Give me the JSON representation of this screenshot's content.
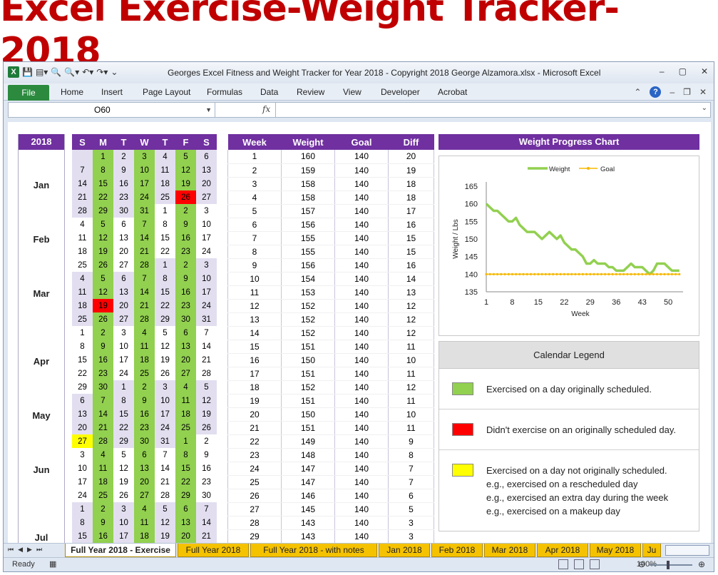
{
  "banner": "Excel Exercise-Weight Tracker-2018",
  "window": {
    "title": "Georges Excel Fitness and Weight Tracker for Year 2018 - Copyright 2018 George Alzamora.xlsx  -  Microsoft Excel"
  },
  "ribbon": {
    "file": "File",
    "tabs": [
      "Home",
      "Insert",
      "Page Layout",
      "Formulas",
      "Data",
      "Review",
      "View",
      "Developer",
      "Acrobat"
    ]
  },
  "formula_bar": {
    "name_box": "O60",
    "fx": "fx",
    "value": ""
  },
  "year_label": "2018",
  "months": [
    "Jan",
    "Feb",
    "Mar",
    "Apr",
    "May",
    "Jun",
    "Jul"
  ],
  "calendar": {
    "days": [
      "S",
      "M",
      "T",
      "W",
      "T",
      "F",
      "S"
    ],
    "rows": [
      [
        [
          "",
          "l"
        ],
        [
          "1",
          "g"
        ],
        [
          "2",
          "l"
        ],
        [
          "3",
          "g"
        ],
        [
          "4",
          "l"
        ],
        [
          "5",
          "g"
        ],
        [
          "6",
          "l"
        ]
      ],
      [
        [
          "7",
          "l"
        ],
        [
          "8",
          "g"
        ],
        [
          "9",
          "l"
        ],
        [
          "10",
          "g"
        ],
        [
          "11",
          "l"
        ],
        [
          "12",
          "g"
        ],
        [
          "13",
          "l"
        ]
      ],
      [
        [
          "14",
          "l"
        ],
        [
          "15",
          "g"
        ],
        [
          "16",
          "l"
        ],
        [
          "17",
          "g"
        ],
        [
          "18",
          "l"
        ],
        [
          "19",
          "g"
        ],
        [
          "20",
          "l"
        ]
      ],
      [
        [
          "21",
          "l"
        ],
        [
          "22",
          "g"
        ],
        [
          "23",
          "l"
        ],
        [
          "24",
          "g"
        ],
        [
          "25",
          "l"
        ],
        [
          "26",
          "r"
        ],
        [
          "27",
          "l"
        ]
      ],
      [
        [
          "28",
          "l"
        ],
        [
          "29",
          "g"
        ],
        [
          "30",
          "l"
        ],
        [
          "31",
          "g"
        ],
        [
          "1",
          "w"
        ],
        [
          "2",
          "g"
        ],
        [
          "3",
          "w"
        ]
      ],
      [
        [
          "4",
          "w"
        ],
        [
          "5",
          "g"
        ],
        [
          "6",
          "w"
        ],
        [
          "7",
          "g"
        ],
        [
          "8",
          "w"
        ],
        [
          "9",
          "g"
        ],
        [
          "10",
          "w"
        ]
      ],
      [
        [
          "11",
          "w"
        ],
        [
          "12",
          "g"
        ],
        [
          "13",
          "w"
        ],
        [
          "14",
          "g"
        ],
        [
          "15",
          "w"
        ],
        [
          "16",
          "g"
        ],
        [
          "17",
          "w"
        ]
      ],
      [
        [
          "18",
          "w"
        ],
        [
          "19",
          "g"
        ],
        [
          "20",
          "w"
        ],
        [
          "21",
          "g"
        ],
        [
          "22",
          "w"
        ],
        [
          "23",
          "g"
        ],
        [
          "24",
          "w"
        ]
      ],
      [
        [
          "25",
          "w"
        ],
        [
          "26",
          "g"
        ],
        [
          "27",
          "w"
        ],
        [
          "28",
          "g"
        ],
        [
          "1",
          "l"
        ],
        [
          "2",
          "g"
        ],
        [
          "3",
          "l"
        ]
      ],
      [
        [
          "4",
          "l"
        ],
        [
          "5",
          "g"
        ],
        [
          "6",
          "l"
        ],
        [
          "7",
          "g"
        ],
        [
          "8",
          "l"
        ],
        [
          "9",
          "g"
        ],
        [
          "10",
          "l"
        ]
      ],
      [
        [
          "11",
          "l"
        ],
        [
          "12",
          "g"
        ],
        [
          "13",
          "l"
        ],
        [
          "14",
          "g"
        ],
        [
          "15",
          "l"
        ],
        [
          "16",
          "g"
        ],
        [
          "17",
          "l"
        ]
      ],
      [
        [
          "18",
          "l"
        ],
        [
          "19",
          "r"
        ],
        [
          "20",
          "l"
        ],
        [
          "21",
          "g"
        ],
        [
          "22",
          "l"
        ],
        [
          "23",
          "g"
        ],
        [
          "24",
          "l"
        ]
      ],
      [
        [
          "25",
          "l"
        ],
        [
          "26",
          "g"
        ],
        [
          "27",
          "l"
        ],
        [
          "28",
          "g"
        ],
        [
          "29",
          "l"
        ],
        [
          "30",
          "g"
        ],
        [
          "31",
          "l"
        ]
      ],
      [
        [
          "1",
          "w"
        ],
        [
          "2",
          "g"
        ],
        [
          "3",
          "w"
        ],
        [
          "4",
          "g"
        ],
        [
          "5",
          "w"
        ],
        [
          "6",
          "g"
        ],
        [
          "7",
          "w"
        ]
      ],
      [
        [
          "8",
          "w"
        ],
        [
          "9",
          "g"
        ],
        [
          "10",
          "w"
        ],
        [
          "11",
          "g"
        ],
        [
          "12",
          "w"
        ],
        [
          "13",
          "g"
        ],
        [
          "14",
          "w"
        ]
      ],
      [
        [
          "15",
          "w"
        ],
        [
          "16",
          "g"
        ],
        [
          "17",
          "w"
        ],
        [
          "18",
          "g"
        ],
        [
          "19",
          "w"
        ],
        [
          "20",
          "g"
        ],
        [
          "21",
          "w"
        ]
      ],
      [
        [
          "22",
          "w"
        ],
        [
          "23",
          "g"
        ],
        [
          "24",
          "w"
        ],
        [
          "25",
          "g"
        ],
        [
          "26",
          "w"
        ],
        [
          "27",
          "g"
        ],
        [
          "28",
          "w"
        ]
      ],
      [
        [
          "29",
          "w"
        ],
        [
          "30",
          "g"
        ],
        [
          "1",
          "l"
        ],
        [
          "2",
          "g"
        ],
        [
          "3",
          "l"
        ],
        [
          "4",
          "g"
        ],
        [
          "5",
          "l"
        ]
      ],
      [
        [
          "6",
          "l"
        ],
        [
          "7",
          "g"
        ],
        [
          "8",
          "l"
        ],
        [
          "9",
          "g"
        ],
        [
          "10",
          "l"
        ],
        [
          "11",
          "g"
        ],
        [
          "12",
          "l"
        ]
      ],
      [
        [
          "13",
          "l"
        ],
        [
          "14",
          "g"
        ],
        [
          "15",
          "l"
        ],
        [
          "16",
          "g"
        ],
        [
          "17",
          "l"
        ],
        [
          "18",
          "g"
        ],
        [
          "19",
          "l"
        ]
      ],
      [
        [
          "20",
          "l"
        ],
        [
          "21",
          "g"
        ],
        [
          "22",
          "l"
        ],
        [
          "23",
          "g"
        ],
        [
          "24",
          "l"
        ],
        [
          "25",
          "g"
        ],
        [
          "26",
          "l"
        ]
      ],
      [
        [
          "27",
          "y"
        ],
        [
          "28",
          "g"
        ],
        [
          "29",
          "l"
        ],
        [
          "30",
          "g"
        ],
        [
          "31",
          "l"
        ],
        [
          "1",
          "g"
        ],
        [
          "2",
          "w"
        ]
      ],
      [
        [
          "3",
          "w"
        ],
        [
          "4",
          "g"
        ],
        [
          "5",
          "w"
        ],
        [
          "6",
          "g"
        ],
        [
          "7",
          "w"
        ],
        [
          "8",
          "g"
        ],
        [
          "9",
          "w"
        ]
      ],
      [
        [
          "10",
          "w"
        ],
        [
          "11",
          "g"
        ],
        [
          "12",
          "w"
        ],
        [
          "13",
          "g"
        ],
        [
          "14",
          "w"
        ],
        [
          "15",
          "g"
        ],
        [
          "16",
          "w"
        ]
      ],
      [
        [
          "17",
          "w"
        ],
        [
          "18",
          "g"
        ],
        [
          "19",
          "w"
        ],
        [
          "20",
          "g"
        ],
        [
          "21",
          "w"
        ],
        [
          "22",
          "g"
        ],
        [
          "23",
          "w"
        ]
      ],
      [
        [
          "24",
          "w"
        ],
        [
          "25",
          "g"
        ],
        [
          "26",
          "w"
        ],
        [
          "27",
          "g"
        ],
        [
          "28",
          "w"
        ],
        [
          "29",
          "g"
        ],
        [
          "30",
          "w"
        ]
      ],
      [
        [
          "1",
          "l"
        ],
        [
          "2",
          "g"
        ],
        [
          "3",
          "l"
        ],
        [
          "4",
          "g"
        ],
        [
          "5",
          "l"
        ],
        [
          "6",
          "g"
        ],
        [
          "7",
          "l"
        ]
      ],
      [
        [
          "8",
          "l"
        ],
        [
          "9",
          "g"
        ],
        [
          "10",
          "l"
        ],
        [
          "11",
          "g"
        ],
        [
          "12",
          "l"
        ],
        [
          "13",
          "g"
        ],
        [
          "14",
          "l"
        ]
      ],
      [
        [
          "15",
          "l"
        ],
        [
          "16",
          "g"
        ],
        [
          "17",
          "l"
        ],
        [
          "18",
          "g"
        ],
        [
          "19",
          "l"
        ],
        [
          "20",
          "g"
        ],
        [
          "21",
          "l"
        ]
      ]
    ]
  },
  "weight_table": {
    "headers": [
      "Week",
      "Weight",
      "Goal",
      "Diff"
    ],
    "rows": [
      [
        "1",
        "160",
        "140",
        "20"
      ],
      [
        "2",
        "159",
        "140",
        "19"
      ],
      [
        "3",
        "158",
        "140",
        "18"
      ],
      [
        "4",
        "158",
        "140",
        "18"
      ],
      [
        "5",
        "157",
        "140",
        "17"
      ],
      [
        "6",
        "156",
        "140",
        "16"
      ],
      [
        "7",
        "155",
        "140",
        "15"
      ],
      [
        "8",
        "155",
        "140",
        "15"
      ],
      [
        "9",
        "156",
        "140",
        "16"
      ],
      [
        "10",
        "154",
        "140",
        "14"
      ],
      [
        "11",
        "153",
        "140",
        "13"
      ],
      [
        "12",
        "152",
        "140",
        "12"
      ],
      [
        "13",
        "152",
        "140",
        "12"
      ],
      [
        "14",
        "152",
        "140",
        "12"
      ],
      [
        "15",
        "151",
        "140",
        "11"
      ],
      [
        "16",
        "150",
        "140",
        "10"
      ],
      [
        "17",
        "151",
        "140",
        "11"
      ],
      [
        "18",
        "152",
        "140",
        "12"
      ],
      [
        "19",
        "151",
        "140",
        "11"
      ],
      [
        "20",
        "150",
        "140",
        "10"
      ],
      [
        "21",
        "151",
        "140",
        "11"
      ],
      [
        "22",
        "149",
        "140",
        "9"
      ],
      [
        "23",
        "148",
        "140",
        "8"
      ],
      [
        "24",
        "147",
        "140",
        "7"
      ],
      [
        "25",
        "147",
        "140",
        "7"
      ],
      [
        "26",
        "146",
        "140",
        "6"
      ],
      [
        "27",
        "145",
        "140",
        "5"
      ],
      [
        "28",
        "143",
        "140",
        "3"
      ],
      [
        "29",
        "143",
        "140",
        "3"
      ]
    ]
  },
  "chart_title": "Weight Progress Chart",
  "chart_data": {
    "type": "line",
    "title": "Weight Progress Chart",
    "xlabel": "Week",
    "ylabel": "Weight / Lbs",
    "x_ticks": [
      "1",
      "8",
      "15",
      "22",
      "29",
      "36",
      "43",
      "50"
    ],
    "y_ticks": [
      "135",
      "140",
      "145",
      "150",
      "155",
      "160",
      "165"
    ],
    "xlim": [
      1,
      54
    ],
    "ylim": [
      135,
      165
    ],
    "legend_position": "top",
    "series": [
      {
        "name": "Weight",
        "color": "#92d050",
        "values": [
          160,
          159,
          158,
          158,
          157,
          156,
          155,
          155,
          156,
          154,
          153,
          152,
          152,
          152,
          151,
          150,
          151,
          152,
          151,
          150,
          151,
          149,
          148,
          147,
          147,
          146,
          145,
          143,
          143,
          144,
          143,
          143,
          143,
          142,
          142,
          141,
          141,
          141,
          142,
          143,
          142,
          142,
          142,
          141,
          140,
          141,
          143,
          143,
          143,
          142,
          141,
          141,
          141
        ]
      },
      {
        "name": "Goal",
        "color": "#f5b800",
        "values": [
          140,
          140,
          140,
          140,
          140,
          140,
          140,
          140,
          140,
          140,
          140,
          140,
          140,
          140,
          140,
          140,
          140,
          140,
          140,
          140,
          140,
          140,
          140,
          140,
          140,
          140,
          140,
          140,
          140,
          140,
          140,
          140,
          140,
          140,
          140,
          140,
          140,
          140,
          140,
          140,
          140,
          140,
          140,
          140,
          140,
          140,
          140,
          140,
          140,
          140,
          140,
          140,
          140
        ]
      }
    ]
  },
  "legend": {
    "title": "Calendar Legend",
    "items": [
      {
        "color": "#92d050",
        "lines": [
          "Exercised on a day originally scheduled."
        ]
      },
      {
        "color": "#ff0000",
        "lines": [
          "Didn't exercise on an originally scheduled day."
        ]
      },
      {
        "color": "#ffff00",
        "lines": [
          "Exercised on a day not originally scheduled.",
          "e.g., exercised on a rescheduled day",
          "e.g., exercised an extra day during the week",
          "e.g., exercised on a makeup day"
        ]
      }
    ]
  },
  "sheet_tabs": [
    "Full Year 2018 - Exercise",
    "Full Year 2018",
    "Full Year 2018 - with notes",
    "Jan 2018",
    "Feb 2018",
    "Mar 2018",
    "Apr 2018",
    "May 2018",
    "Ju"
  ],
  "status": {
    "ready": "Ready",
    "zoom": "100%"
  }
}
